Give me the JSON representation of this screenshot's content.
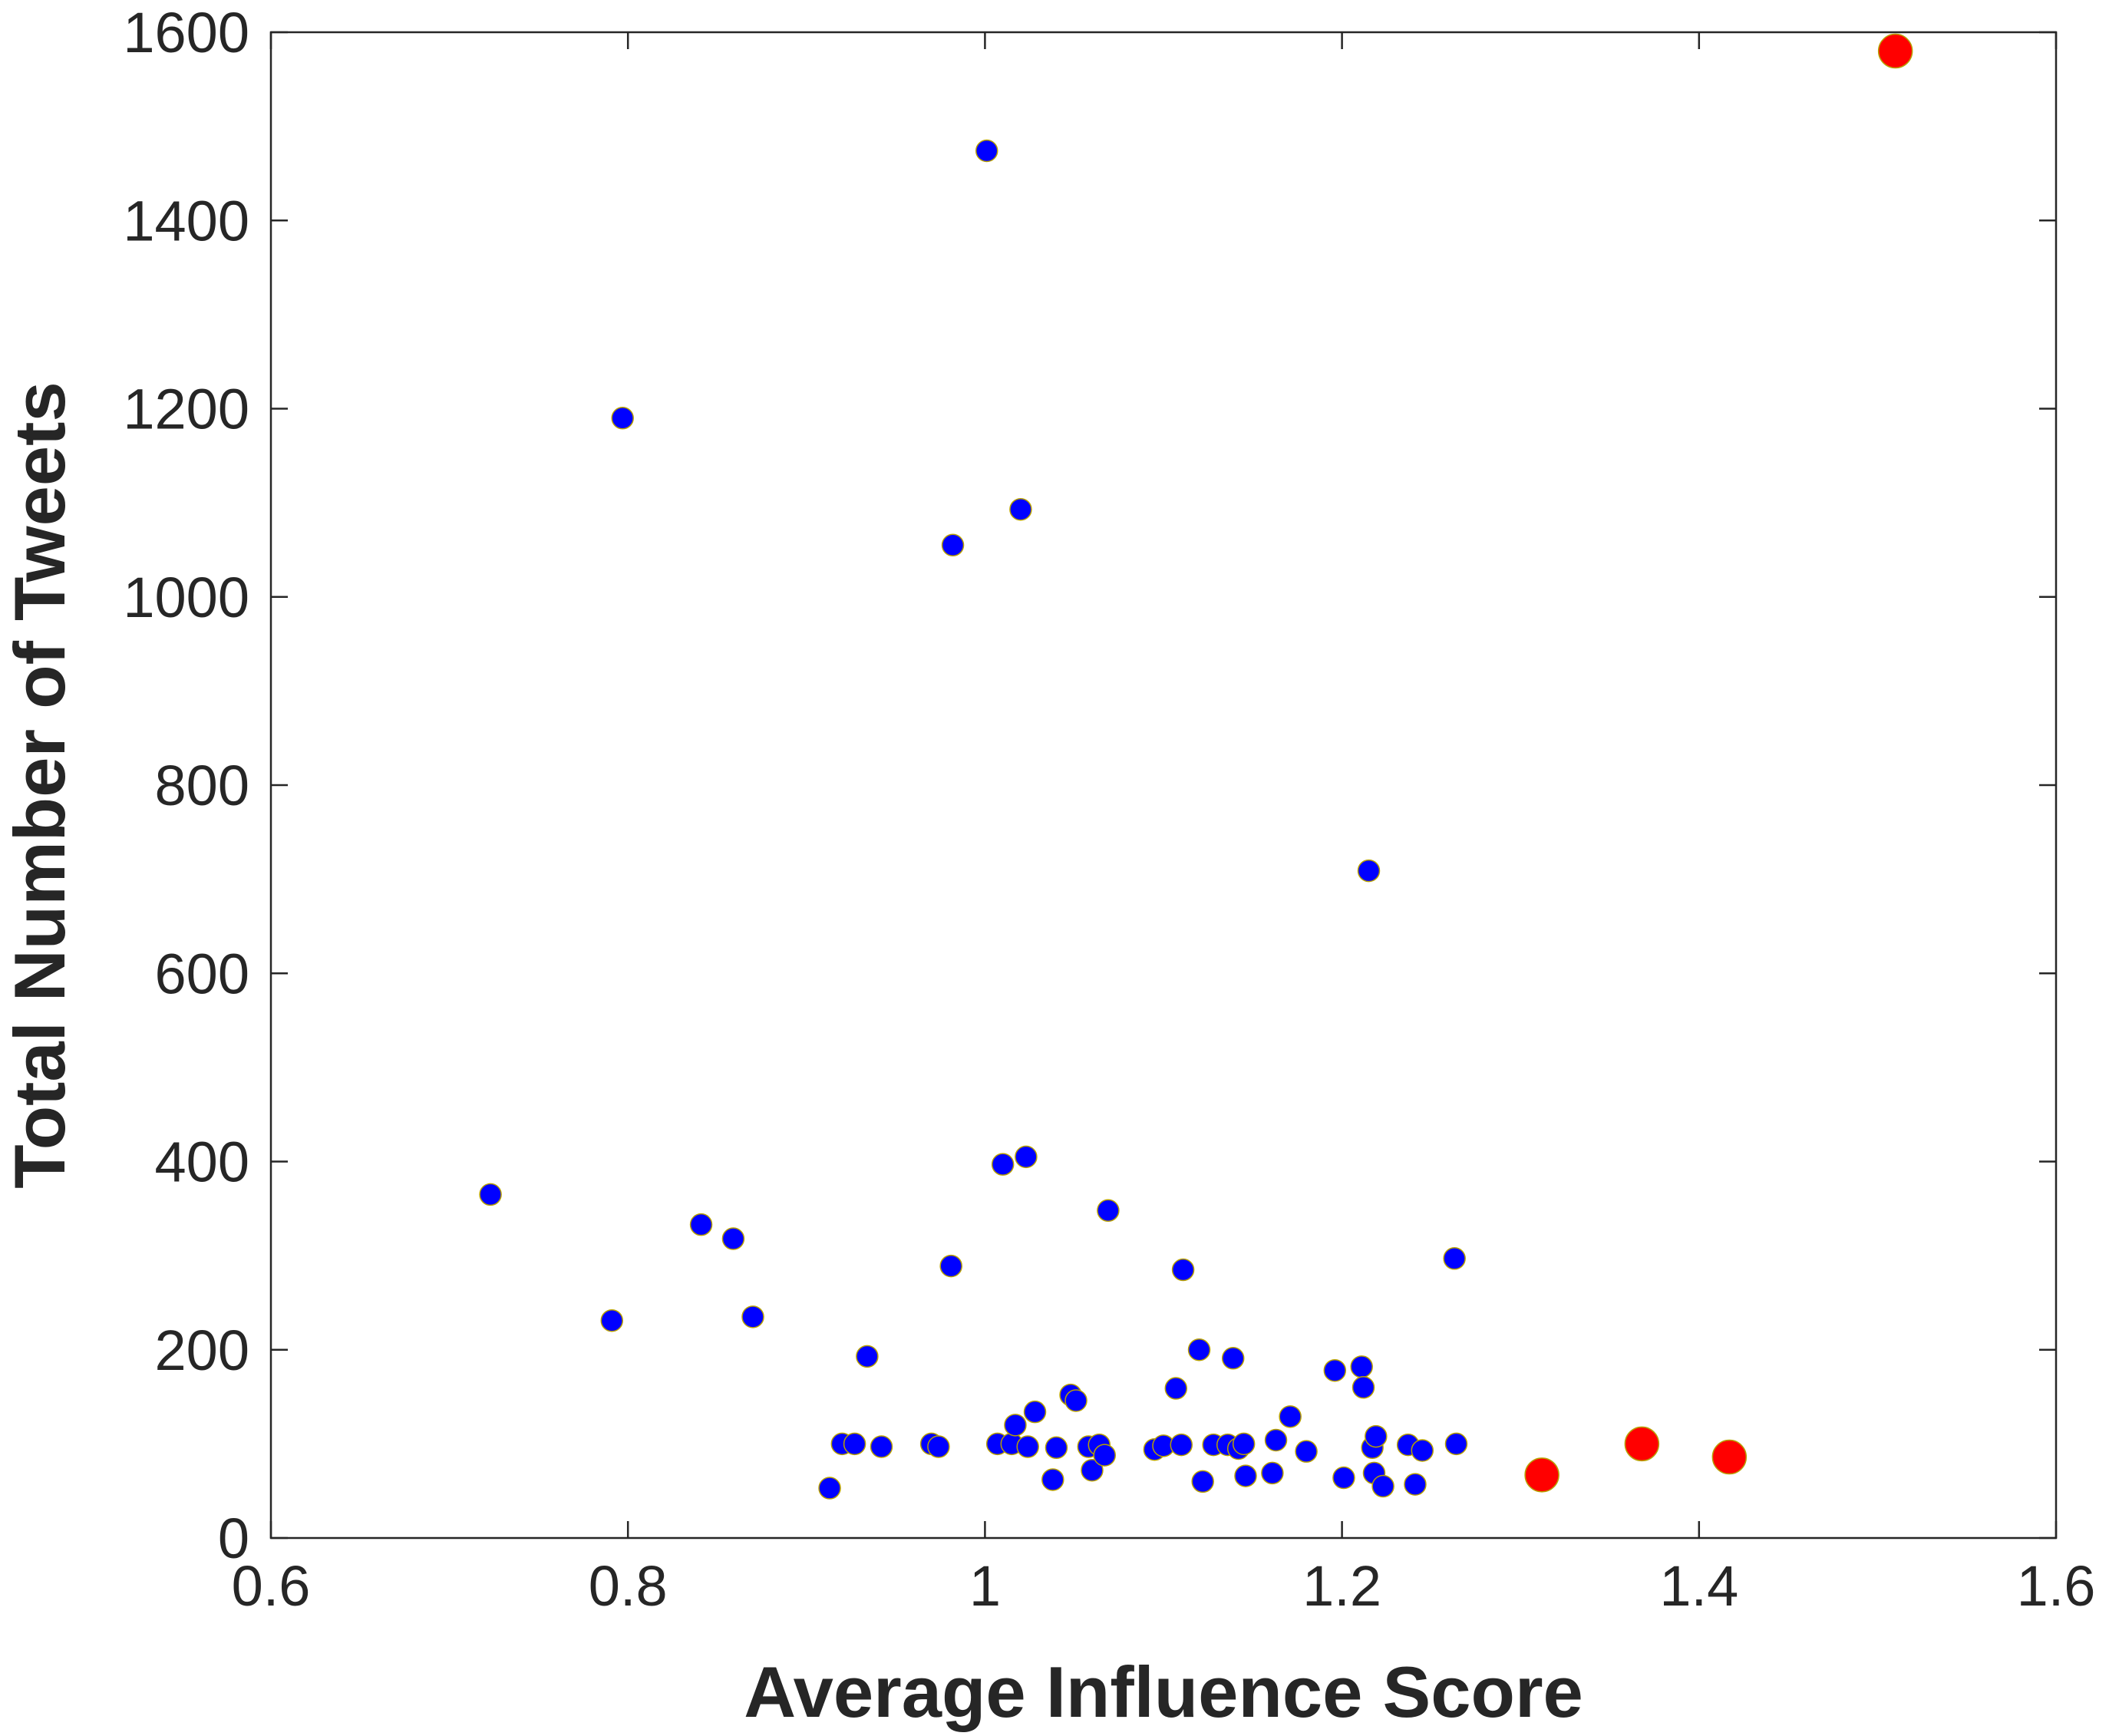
{
  "chart_data": {
    "type": "scatter",
    "title": "",
    "xlabel": "Average Influence Score",
    "ylabel": "Total Number of Tweets",
    "xlim": [
      0.6,
      1.6
    ],
    "ylim": [
      0,
      1600
    ],
    "xticks": [
      0.6,
      0.8,
      1,
      1.2,
      1.4,
      1.6
    ],
    "yticks": [
      0,
      200,
      400,
      600,
      800,
      1000,
      1200,
      1400,
      1600
    ],
    "grid": false,
    "legend": "none",
    "series": [
      {
        "color": "#0000ff",
        "points": [
          [
            0.723,
            365
          ],
          [
            0.791,
            231
          ],
          [
            0.797,
            1190
          ],
          [
            0.841,
            333
          ],
          [
            0.859,
            318
          ],
          [
            0.87,
            235
          ],
          [
            0.913,
            53
          ],
          [
            0.92,
            100
          ],
          [
            0.927,
            100
          ],
          [
            0.934,
            193
          ],
          [
            0.942,
            97
          ],
          [
            0.97,
            100
          ],
          [
            0.974,
            97
          ],
          [
            0.981,
            289
          ],
          [
            0.982,
            1055
          ],
          [
            1.001,
            1474
          ],
          [
            1.007,
            100
          ],
          [
            1.01,
            397
          ],
          [
            1.015,
            100
          ],
          [
            1.017,
            120
          ],
          [
            1.02,
            1093
          ],
          [
            1.023,
            405
          ],
          [
            1.024,
            97
          ],
          [
            1.028,
            134
          ],
          [
            1.038,
            62
          ],
          [
            1.04,
            96
          ],
          [
            1.048,
            152
          ],
          [
            1.051,
            146
          ],
          [
            1.058,
            97
          ],
          [
            1.06,
            72
          ],
          [
            1.064,
            99
          ],
          [
            1.067,
            88
          ],
          [
            1.069,
            348
          ],
          [
            1.095,
            94
          ],
          [
            1.1,
            98
          ],
          [
            1.107,
            159
          ],
          [
            1.11,
            99
          ],
          [
            1.111,
            285
          ],
          [
            1.12,
            200
          ],
          [
            1.122,
            60
          ],
          [
            1.128,
            99
          ],
          [
            1.136,
            99
          ],
          [
            1.139,
            191
          ],
          [
            1.142,
            95
          ],
          [
            1.145,
            100
          ],
          [
            1.146,
            66
          ],
          [
            1.161,
            69
          ],
          [
            1.163,
            104
          ],
          [
            1.171,
            129
          ],
          [
            1.18,
            92
          ],
          [
            1.196,
            178
          ],
          [
            1.201,
            64
          ],
          [
            1.211,
            182
          ],
          [
            1.212,
            160
          ],
          [
            1.215,
            709
          ],
          [
            1.217,
            96
          ],
          [
            1.218,
            69
          ],
          [
            1.219,
            108
          ],
          [
            1.223,
            55
          ],
          [
            1.237,
            99
          ],
          [
            1.241,
            57
          ],
          [
            1.245,
            93
          ],
          [
            1.263,
            297
          ],
          [
            1.264,
            100
          ]
        ]
      },
      {
        "color": "#ff0000",
        "points": [
          [
            1.312,
            67
          ],
          [
            1.368,
            100
          ],
          [
            1.417,
            86
          ],
          [
            1.51,
            1580
          ]
        ]
      }
    ]
  }
}
